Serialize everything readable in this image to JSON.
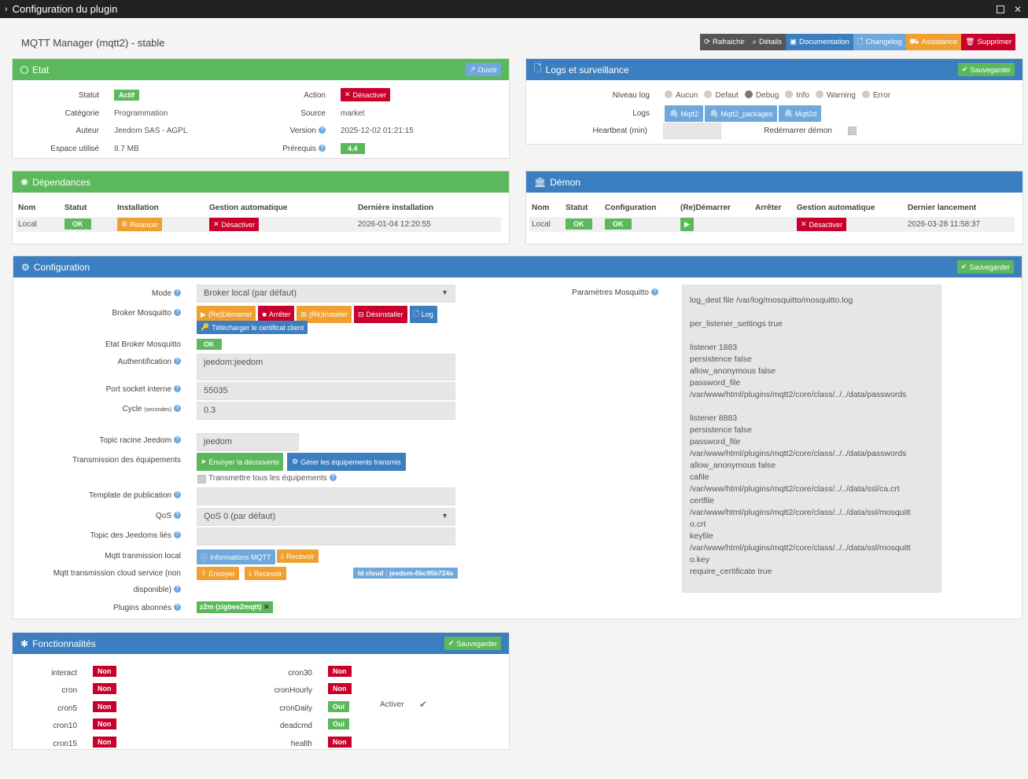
{
  "window": {
    "title": "Configuration du plugin"
  },
  "plugin": {
    "title": "MQTT Manager (mqtt2) - stable"
  },
  "toolbar": [
    {
      "label": "Rafraichir",
      "icon": "refresh-icon",
      "color": "#555"
    },
    {
      "label": "Détails",
      "icon": "search-icon",
      "color": "#555"
    },
    {
      "label": "Documentation",
      "icon": "book-icon",
      "color": "#3c7fc1"
    },
    {
      "label": "Changelog",
      "icon": "file-icon",
      "color": "#6fa8dc"
    },
    {
      "label": "Assistance",
      "icon": "truck-icon",
      "color": "#f0a030"
    },
    {
      "label": "Supprimer",
      "icon": "trash-icon",
      "color": "#c8002b"
    }
  ],
  "etat": {
    "title": "Etat",
    "open_btn": "Ouvrir",
    "statut_label": "Statut",
    "statut_value": "Actif",
    "categorie_label": "Catégorie",
    "categorie_value": "Programmation",
    "auteur_label": "Auteur",
    "auteur_value": "Jeedom SAS - AGPL",
    "espace_label": "Espace utilisé",
    "espace_value": "8.7 MB",
    "action_label": "Action",
    "action_btn": "Désactiver",
    "source_label": "Source",
    "source_value": "market",
    "version_label": "Version",
    "version_value": "2025-12-02 01:21:15",
    "prerequis_label": "Prérequis",
    "prerequis_value": "4.4"
  },
  "logs": {
    "title": "Logs et surveillance",
    "save_btn": "Sauvegarder",
    "niveau_label": "Niveau log",
    "levels": [
      "Aucun",
      "Defaut",
      "Debug",
      "Info",
      "Warning",
      "Error"
    ],
    "selected_level": "Debug",
    "logs_label": "Logs",
    "log_buttons": [
      "Mqtt2",
      "Mqtt2_packages",
      "Mqtt2d"
    ],
    "heartbeat_label": "Heartbeat (min)",
    "heartbeat_value": "",
    "redemarrer_label": "Redémarrer démon"
  },
  "dependances": {
    "title": "Dépendances",
    "headers": [
      "Nom",
      "Statut",
      "Installation",
      "Gestion automatique",
      "Dernière installation"
    ],
    "row": {
      "nom": "Local",
      "statut": "OK",
      "installation": "Relancer",
      "gestion": "Désactiver",
      "derniere": "2026-01-04 12:20:55"
    }
  },
  "demon": {
    "title": "Démon",
    "headers": [
      "Nom",
      "Statut",
      "Configuration",
      "(Re)Démarrer",
      "Arrêter",
      "Gestion automatique",
      "Dernier lancement"
    ],
    "row": {
      "nom": "Local",
      "statut": "OK",
      "configuration": "OK",
      "gestion": "Désactiver",
      "dernier": "2026-03-28 11:58:37"
    }
  },
  "config": {
    "title": "Configuration",
    "save_btn": "Sauvegarder",
    "mode_label": "Mode",
    "mode_value": "Broker local (par défaut)",
    "broker_label": "Broker Mosquitto",
    "broker_buttons": [
      "(Re)Démarrer",
      "Arrêter",
      "(Ré)Installer",
      "Désinstaller",
      "Log"
    ],
    "cert_btn": "Télécharger le certificat client",
    "etat_broker_label": "Etat Broker Mosquitto",
    "etat_broker_value": "OK",
    "auth_label": "Authentification",
    "auth_value": "jeedom:jeedom",
    "port_label": "Port socket interne",
    "port_value": "55035",
    "cycle_label": "Cycle",
    "cycle_unit": "(secondes)",
    "cycle_value": "0.3",
    "topic_label": "Topic racine Jeedom",
    "topic_value": "jeedom",
    "transmission_label": "Transmission des équipements",
    "envoyer_decouverte_btn": "Envoyer la découverte",
    "gerer_btn": "Gérer les équipements transmis",
    "transmettre_tous_label": "Transmettre tous les équipements",
    "template_label": "Template de publication",
    "template_value": "",
    "qos_label": "QoS",
    "qos_value": "QoS 0 (par défaut)",
    "topic_lies_label": "Topic des Jeedoms liés",
    "topic_lies_value": "",
    "mqtt_local_label": "Mqtt tranmission local",
    "info_mqtt_btn": "Informations MQTT",
    "recevoir_btn": "Recevoir",
    "mqtt_cloud_label1": "Mqtt transmission cloud service (non",
    "mqtt_cloud_label2": "disponible)",
    "envoyer_btn": "Envoyer",
    "recevoir_cloud_btn": "Recevoir",
    "id_cloud": "Id cloud : jeedom-6bc95b724a",
    "plugins_label": "Plugins abonnés",
    "plugin_tag": "z2m (zigbee2mqtt)",
    "params_label": "Paramètres Mosquitto",
    "params_value": "log_dest file /var/log/mosquitto/mosquitto.log\n\nper_listener_settings true\n\nlistener 1883\npersistence false\nallow_anonymous false\npassword_file\n/var/www/html/plugins/mqtt2/core/class/../../data/passwords\n\nlistener 8883\npersistence false\npassword_file\n/var/www/html/plugins/mqtt2/core/class/../../data/passwords\nallow_anonymous false\ncafile\n/var/www/html/plugins/mqtt2/core/class/../../data/ssl/ca.crt\ncertfile\n/var/www/html/plugins/mqtt2/core/class/../../data/ssl/mosquitt\no.crt\nkeyfile\n/var/www/html/plugins/mqtt2/core/class/../../data/ssl/mosquitt\no.key\nrequire_certificate true"
  },
  "fonctionnalites": {
    "title": "Fonctionnalités",
    "save_btn": "Sauvegarder",
    "left": [
      {
        "name": "interact",
        "value": "Non"
      },
      {
        "name": "cron",
        "value": "Non"
      },
      {
        "name": "cron5",
        "value": "Non"
      },
      {
        "name": "cron10",
        "value": "Non"
      },
      {
        "name": "cron15",
        "value": "Non"
      }
    ],
    "right": [
      {
        "name": "cron30",
        "value": "Non"
      },
      {
        "name": "cronHourly",
        "value": "Non"
      },
      {
        "name": "cronDaily",
        "value": "Oui"
      },
      {
        "name": "deadcmd",
        "value": "Oui"
      },
      {
        "name": "health",
        "value": "Non"
      }
    ],
    "activer_label": "Activer"
  }
}
